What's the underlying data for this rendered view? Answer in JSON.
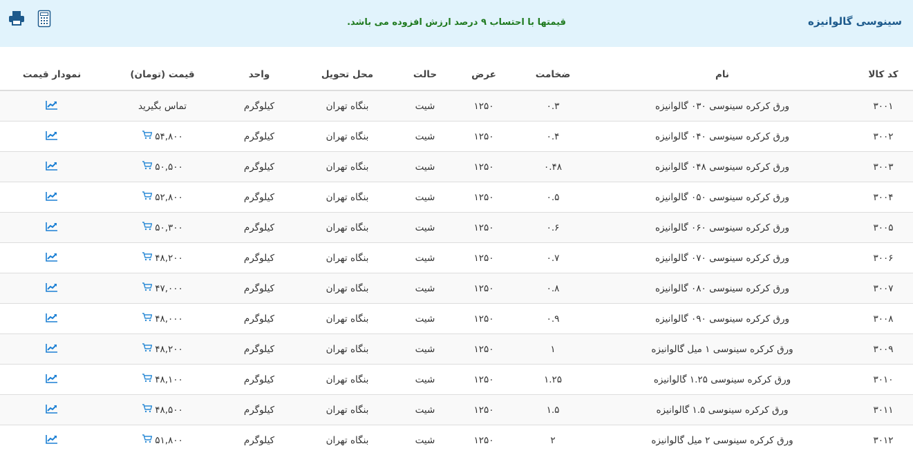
{
  "header": {
    "title": "سینوسی گالوانیزه",
    "notice": "قیمتها با احتساب ۹ درصد ارزش افزوده می باشد.",
    "icons": [
      "printer-icon",
      "calculator-icon"
    ],
    "accent": "#1d5a8c",
    "notice_color": "#1f7a1f"
  },
  "table": {
    "columns": [
      "کد کالا",
      "نام",
      "ضخامت",
      "عرض",
      "حالت",
      "محل تحویل",
      "واحد",
      "قیمت (تومان)",
      "نمودار قیمت"
    ],
    "rows": [
      {
        "code": "۳۰۰۱",
        "name": "ورق کرکره سینوسی ۰۳۰ گالوانیزه",
        "thickness": "۰.۳",
        "width": "۱۲۵۰",
        "state": "شیت",
        "delivery": "بنگاه تهران",
        "unit": "کیلوگرم",
        "price": "تماس بگیرید"
      },
      {
        "code": "۳۰۰۲",
        "name": "ورق کرکره سینوسی ۰۴۰ گالوانیزه",
        "thickness": "۰.۴",
        "width": "۱۲۵۰",
        "state": "شیت",
        "delivery": "بنگاه تهران",
        "unit": "کیلوگرم",
        "price": "۵۴,۸۰۰"
      },
      {
        "code": "۳۰۰۳",
        "name": "ورق کرکره سینوسی ۰۴۸ گالوانیزه",
        "thickness": "۰.۴۸",
        "width": "۱۲۵۰",
        "state": "شیت",
        "delivery": "بنگاه تهران",
        "unit": "کیلوگرم",
        "price": "۵۰,۵۰۰"
      },
      {
        "code": "۳۰۰۴",
        "name": "ورق کرکره سینوسی ۰۵۰ گالوانیزه",
        "thickness": "۰.۵",
        "width": "۱۲۵۰",
        "state": "شیت",
        "delivery": "بنگاه تهران",
        "unit": "کیلوگرم",
        "price": "۵۲,۸۰۰"
      },
      {
        "code": "۳۰۰۵",
        "name": "ورق کرکره سینوسی ۰۶۰ گالوانیزه",
        "thickness": "۰.۶",
        "width": "۱۲۵۰",
        "state": "شیت",
        "delivery": "بنگاه تهران",
        "unit": "کیلوگرم",
        "price": "۵۰,۳۰۰"
      },
      {
        "code": "۳۰۰۶",
        "name": "ورق کرکره سینوسی ۰۷۰ گالوانیزه",
        "thickness": "۰.۷",
        "width": "۱۲۵۰",
        "state": "شیت",
        "delivery": "بنگاه تهران",
        "unit": "کیلوگرم",
        "price": "۴۸,۲۰۰"
      },
      {
        "code": "۳۰۰۷",
        "name": "ورق کرکره سینوسی ۰۸۰ گالوانیزه",
        "thickness": "۰.۸",
        "width": "۱۲۵۰",
        "state": "شیت",
        "delivery": "بنگاه تهران",
        "unit": "کیلوگرم",
        "price": "۴۷,۰۰۰"
      },
      {
        "code": "۳۰۰۸",
        "name": "ورق کرکره سینوسی ۰۹۰ گالوانیزه",
        "thickness": "۰.۹",
        "width": "۱۲۵۰",
        "state": "شیت",
        "delivery": "بنگاه تهران",
        "unit": "کیلوگرم",
        "price": "۴۸,۰۰۰"
      },
      {
        "code": "۳۰۰۹",
        "name": "ورق کرکره سینوسی ۱ میل گالوانیزه",
        "thickness": "۱",
        "width": "۱۲۵۰",
        "state": "شیت",
        "delivery": "بنگاه تهران",
        "unit": "کیلوگرم",
        "price": "۴۸,۲۰۰"
      },
      {
        "code": "۳۰۱۰",
        "name": "ورق کرکره سینوسی ۱.۲۵ گالوانیزه",
        "thickness": "۱.۲۵",
        "width": "۱۲۵۰",
        "state": "شیت",
        "delivery": "بنگاه تهران",
        "unit": "کیلوگرم",
        "price": "۴۸,۱۰۰"
      },
      {
        "code": "۳۰۱۱",
        "name": "ورق کرکره سینوسی ۱.۵ گالوانیزه",
        "thickness": "۱.۵",
        "width": "۱۲۵۰",
        "state": "شیت",
        "delivery": "بنگاه تهران",
        "unit": "کیلوگرم",
        "price": "۴۸,۵۰۰"
      },
      {
        "code": "۳۰۱۲",
        "name": "ورق کرکره سینوسی ۲ میل گالوانیزه",
        "thickness": "۲",
        "width": "۱۲۵۰",
        "state": "شیت",
        "delivery": "بنگاه تهران",
        "unit": "کیلوگرم",
        "price": "۵۱,۸۰۰"
      }
    ]
  }
}
